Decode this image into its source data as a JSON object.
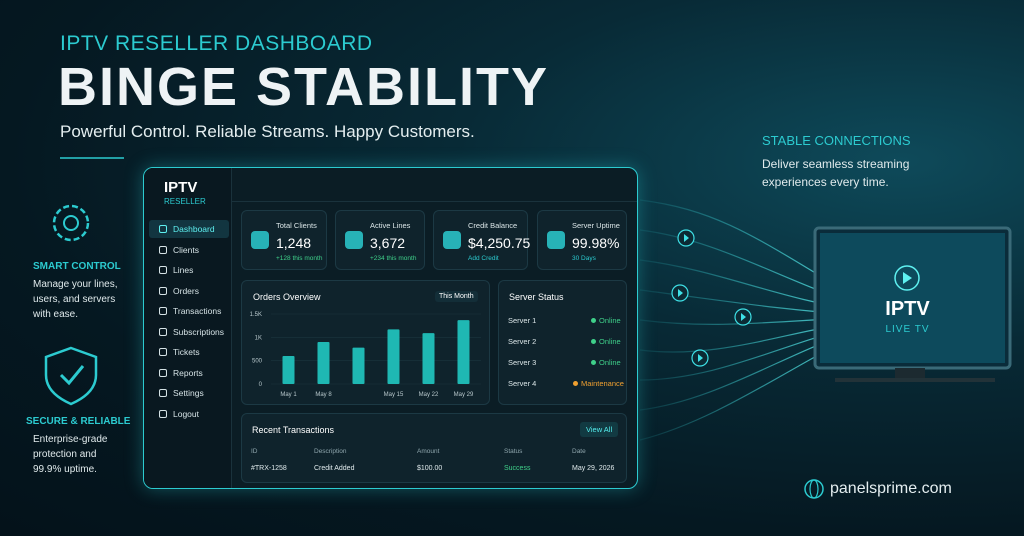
{
  "header": {
    "eyebrow": "IPTV RESELLER DASHBOARD",
    "title": "BINGE STABILITY",
    "tagline": "Powerful Control. Reliable Streams. Happy Customers."
  },
  "features": [
    {
      "title": "SMART CONTROL",
      "text": "Manage your lines, users, and servers with ease."
    },
    {
      "title": "SECURE & RELIABLE",
      "text": "Enterprise-grade protection and 99.9% uptime."
    }
  ],
  "right": {
    "title": "STABLE CONNECTIONS",
    "text": "Deliver seamless streaming experiences every time."
  },
  "tv": {
    "title": "IPTV",
    "subtitle": "LIVE TV"
  },
  "website": "panelsprime.com",
  "dashboard": {
    "brand": "IPTV",
    "brand_sub": "RESELLER",
    "nav": [
      "Dashboard",
      "Clients",
      "Lines",
      "Orders",
      "Transactions",
      "Subscriptions",
      "Tickets",
      "Reports",
      "Settings",
      "Logout"
    ],
    "stats": [
      {
        "label": "Total Clients",
        "value": "1,248",
        "note": "+128 this month"
      },
      {
        "label": "Active Lines",
        "value": "3,672",
        "note": "+234 this month"
      },
      {
        "label": "Credit Balance",
        "value": "$4,250.75",
        "note": "Add Credit"
      },
      {
        "label": "Server Uptime",
        "value": "99.98%",
        "note": "30 Days"
      }
    ],
    "orders": {
      "title": "Orders Overview",
      "filter": "This Month",
      "categories": [
        "May 1",
        "May 8",
        null,
        "May 15",
        "May 22",
        "May 29"
      ],
      "values": [
        600,
        900,
        780,
        1170,
        1090,
        1370
      ],
      "ylim": [
        0,
        1500
      ],
      "yticks": [
        0,
        500,
        {
          "value": 1000,
          "label": "1K"
        },
        {
          "value": 1500,
          "label": "1.5K"
        }
      ]
    },
    "servers": {
      "title": "Server Status",
      "rows": [
        {
          "name": "Server 1",
          "status": "Online"
        },
        {
          "name": "Server 2",
          "status": "Online"
        },
        {
          "name": "Server 3",
          "status": "Online"
        },
        {
          "name": "Server 4",
          "status": "Maintenance"
        }
      ]
    },
    "transactions": {
      "title": "Recent Transactions",
      "button": "View All",
      "columns": [
        "ID",
        "Description",
        "Amount",
        "Status",
        "Date"
      ],
      "rows": [
        [
          "#TRX-1258",
          "Credit Added",
          "$100.00",
          "Success",
          "May 29, 2026"
        ]
      ]
    }
  }
}
